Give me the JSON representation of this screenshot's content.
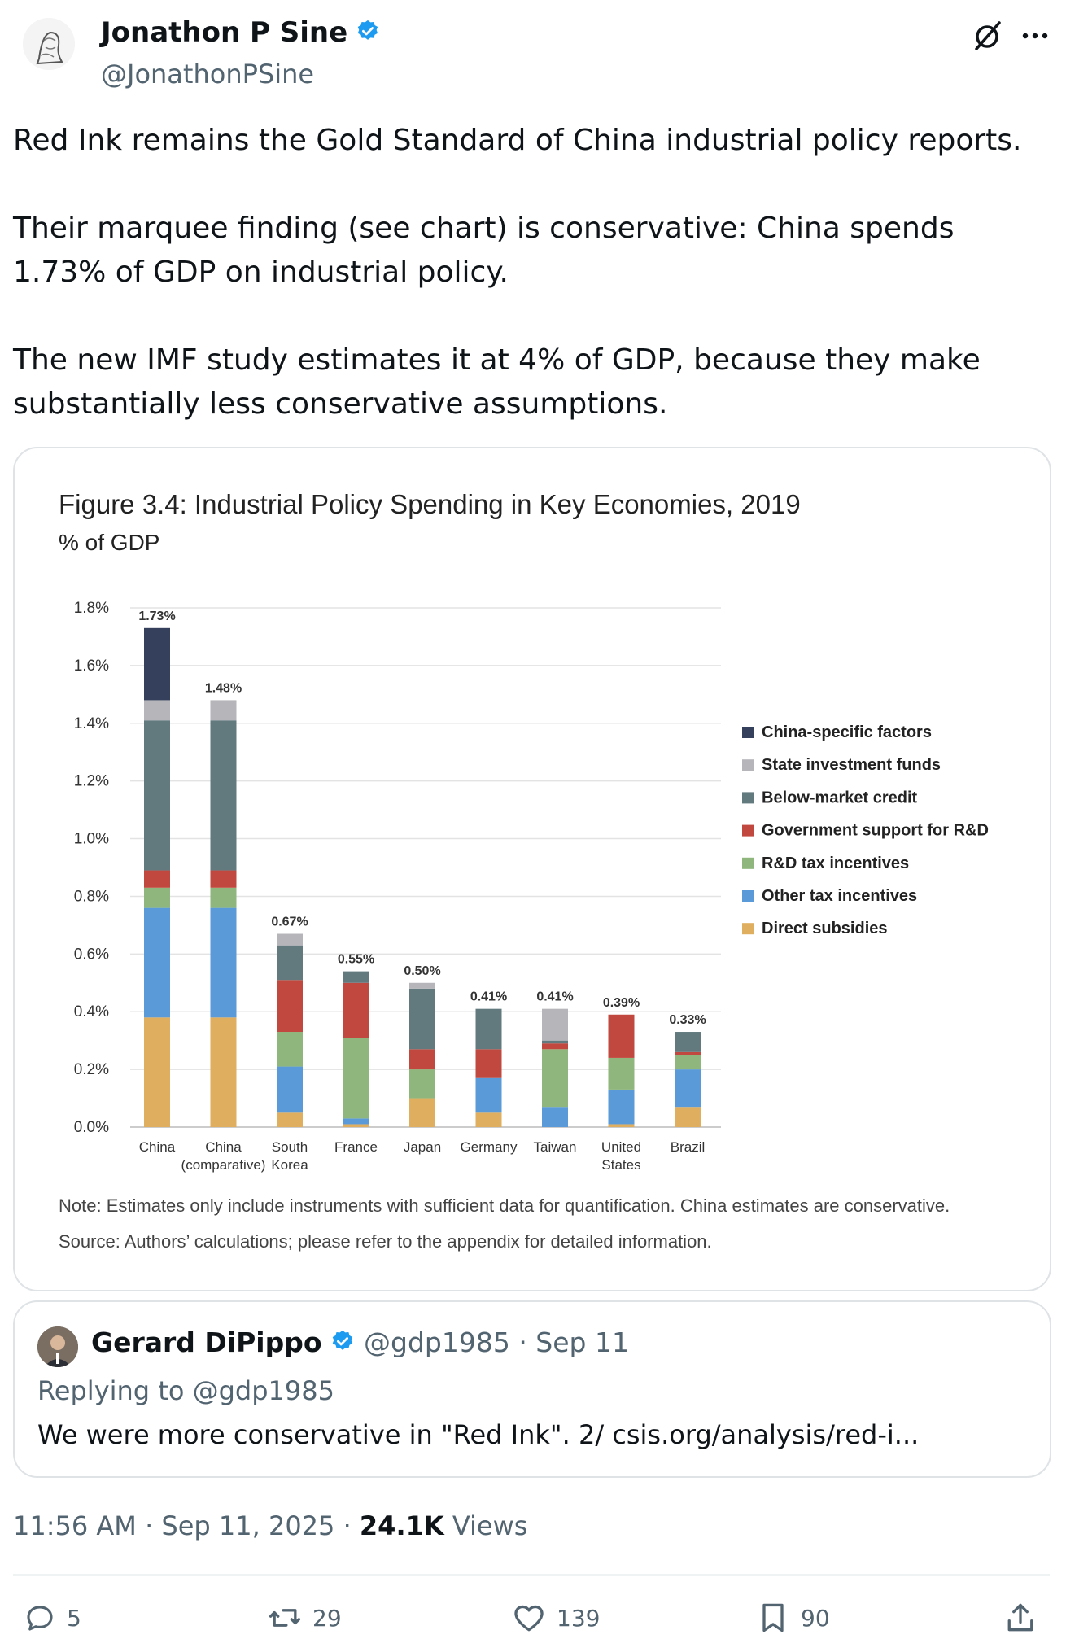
{
  "author": {
    "name": "Jonathon P Sine",
    "handle": "@JonathonPSine",
    "verified_color": "#1d9bf0"
  },
  "tweet": {
    "paragraphs": [
      "Red Ink remains the Gold Standard of China industrial policy reports.",
      "Their marquee finding (see chart) is conservative: China spends 1.73% of GDP on industrial policy.",
      "The new IMF study estimates it at 4% of GDP, because they make substantially less conservative assumptions."
    ]
  },
  "chart_data": {
    "type": "bar",
    "stacked": true,
    "title": "Figure 3.4: Industrial Policy Spending in Key Economies, 2019",
    "subtitle": "% of GDP",
    "ylim": [
      0,
      1.8
    ],
    "yticks": [
      "0.0%",
      "0.2%",
      "0.4%",
      "0.6%",
      "0.8%",
      "1.0%",
      "1.2%",
      "1.4%",
      "1.6%",
      "1.8%"
    ],
    "ytick_values": [
      0,
      0.2,
      0.4,
      0.6,
      0.8,
      1.0,
      1.2,
      1.4,
      1.6,
      1.8
    ],
    "categories": [
      [
        "China"
      ],
      [
        "China",
        "(comparative)"
      ],
      [
        "South",
        "Korea"
      ],
      [
        "France"
      ],
      [
        "Japan"
      ],
      [
        "Germany"
      ],
      [
        "Taiwan"
      ],
      [
        "United",
        "States"
      ],
      [
        "Brazil"
      ]
    ],
    "totals": [
      "1.73%",
      "1.48%",
      "0.67%",
      "0.55%",
      "0.50%",
      "0.41%",
      "0.41%",
      "0.39%",
      "0.33%"
    ],
    "series": [
      {
        "name": "Direct subsidies",
        "color": "#dfae5e",
        "values": [
          0.38,
          0.38,
          0.05,
          0.01,
          0.1,
          0.05,
          0.0,
          0.01,
          0.07
        ]
      },
      {
        "name": "Other tax incentives",
        "color": "#5b9ad8",
        "values": [
          0.38,
          0.38,
          0.16,
          0.02,
          0.0,
          0.12,
          0.07,
          0.12,
          0.13
        ]
      },
      {
        "name": "R&D tax incentives",
        "color": "#8fb67c",
        "values": [
          0.07,
          0.07,
          0.12,
          0.28,
          0.1,
          0.0,
          0.2,
          0.11,
          0.05
        ]
      },
      {
        "name": "Government support for R&D",
        "color": "#c1483e",
        "values": [
          0.06,
          0.06,
          0.18,
          0.19,
          0.07,
          0.1,
          0.02,
          0.15,
          0.01
        ]
      },
      {
        "name": "Below-market credit",
        "color": "#62797e",
        "values": [
          0.52,
          0.52,
          0.12,
          0.04,
          0.21,
          0.14,
          0.01,
          0.0,
          0.07
        ]
      },
      {
        "name": "State investment funds",
        "color": "#b5b5ba",
        "values": [
          0.07,
          0.07,
          0.04,
          0.0,
          0.02,
          0.0,
          0.11,
          0.0,
          0.0
        ]
      },
      {
        "name": "China-specific factors",
        "color": "#35405c",
        "values": [
          0.25,
          0.0,
          0.0,
          0.0,
          0.0,
          0.0,
          0.0,
          0.0,
          0.0
        ]
      }
    ],
    "legend_order": [
      "China-specific factors",
      "State investment funds",
      "Below-market credit",
      "Government support for R&D",
      "R&D tax incentives",
      "Other tax incentives",
      "Direct subsidies"
    ],
    "legend_position": "right",
    "grid": true,
    "note": "Note: Estimates only include instruments with sufficient data for quantification. China estimates are conservative.",
    "source": "Source: Authors’ calculations; please refer to the appendix for detailed information."
  },
  "quoted": {
    "name": "Gerard DiPippo",
    "handle_date": "@gdp1985 · Sep 11",
    "replying": "Replying to @gdp1985",
    "text": "We were more conservative in \"Red Ink\". 2/ csis.org/analysis/red-i..."
  },
  "meta": {
    "time": "11:56 AM · Sep 11, 2025 · ",
    "views_count": "24.1K",
    "views_label": " Views"
  },
  "actions": {
    "replies": "5",
    "reposts": "29",
    "likes": "139",
    "bookmarks": "90"
  }
}
